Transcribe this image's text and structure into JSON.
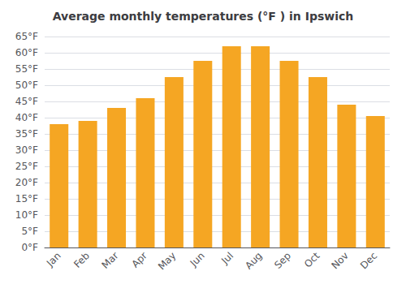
{
  "chart_data": {
    "type": "bar",
    "title": "Average monthly temperatures (°F ) in Ipswich",
    "categories": [
      "Jan",
      "Feb",
      "Mar",
      "Apr",
      "May",
      "Jun",
      "Jul",
      "Aug",
      "Sep",
      "Oct",
      "Nov",
      "Dec"
    ],
    "values": [
      38,
      39,
      43,
      46,
      52.5,
      57.5,
      62,
      62,
      57.5,
      52.5,
      44,
      40.5
    ],
    "color": "#F5A623",
    "ylim": [
      0,
      65
    ],
    "yticks": [
      {
        "value": 0,
        "label": "0°F"
      },
      {
        "value": 5,
        "label": "5°F"
      },
      {
        "value": 10,
        "label": "10°F"
      },
      {
        "value": 15,
        "label": "15°F"
      },
      {
        "value": 20,
        "label": "20°F"
      },
      {
        "value": 25,
        "label": "25°F"
      },
      {
        "value": 30,
        "label": "30°F"
      },
      {
        "value": 35,
        "label": "35°F"
      },
      {
        "value": 40,
        "label": "40°F"
      },
      {
        "value": 45,
        "label": "45°F"
      },
      {
        "value": 50,
        "label": "50°F"
      },
      {
        "value": 55,
        "label": "55°F"
      },
      {
        "value": 60,
        "label": "60°F"
      },
      {
        "value": 65,
        "label": "65°F"
      }
    ],
    "grid": true
  }
}
